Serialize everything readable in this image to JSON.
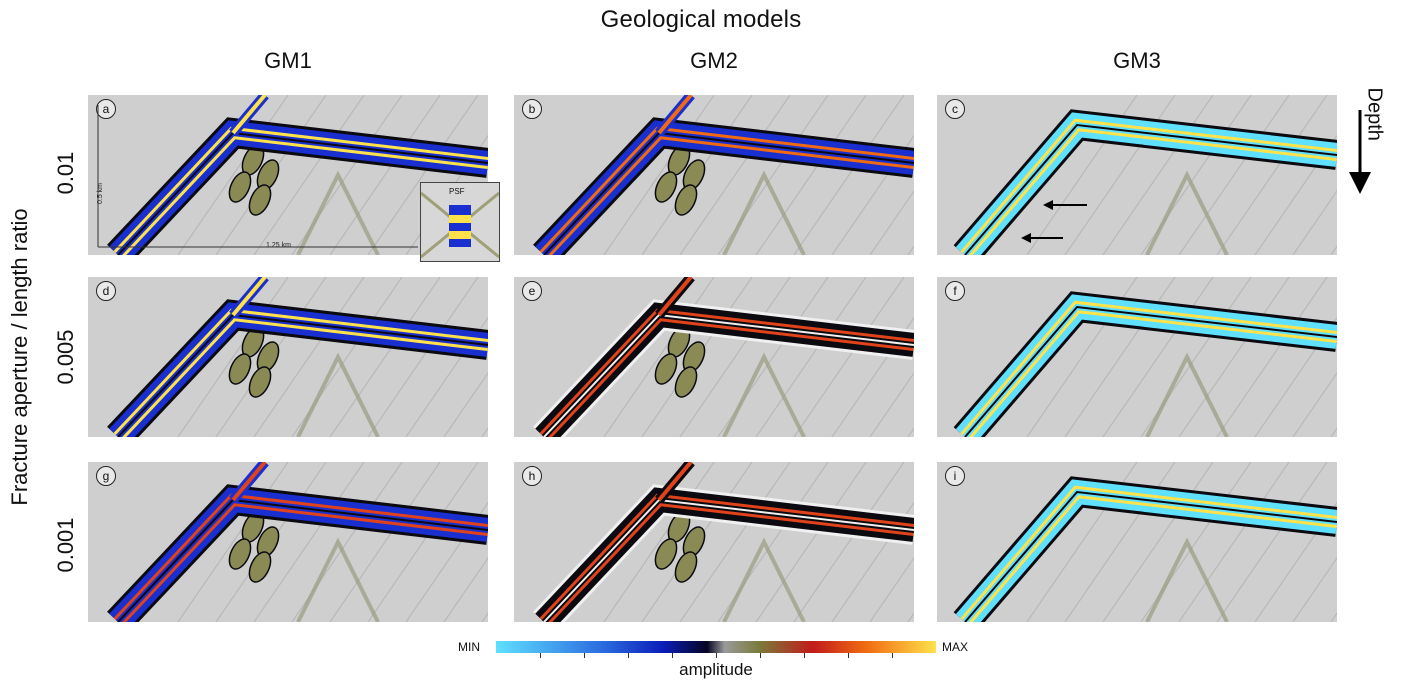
{
  "figure": {
    "title": "Geological models",
    "columns": [
      "GM1",
      "GM2",
      "GM3"
    ],
    "row_axis_label": "Fracture aperture / length ratio",
    "rows": [
      "0.01",
      "0.005",
      "0.001"
    ],
    "depth_label": "Depth"
  },
  "panels": [
    {
      "label": "a",
      "model": "GM1",
      "ratio": "0.01",
      "palette": "blueyellow"
    },
    {
      "label": "b",
      "model": "GM2",
      "ratio": "0.01",
      "palette": "bluered"
    },
    {
      "label": "c",
      "model": "GM3",
      "ratio": "0.01",
      "palette": "cyanyellow"
    },
    {
      "label": "d",
      "model": "GM1",
      "ratio": "0.005",
      "palette": "blueyellow"
    },
    {
      "label": "e",
      "model": "GM2",
      "ratio": "0.005",
      "palette": "redblack"
    },
    {
      "label": "f",
      "model": "GM3",
      "ratio": "0.005",
      "palette": "cyanyellow"
    },
    {
      "label": "g",
      "model": "GM1",
      "ratio": "0.001",
      "palette": "redblue"
    },
    {
      "label": "h",
      "model": "GM2",
      "ratio": "0.001",
      "palette": "redblack"
    },
    {
      "label": "i",
      "model": "GM3",
      "ratio": "0.001",
      "palette": "cyanyellow"
    }
  ],
  "scale_bars": {
    "vertical": "0.5 km",
    "horizontal": "1.25 km"
  },
  "inset": {
    "label": "PSF"
  },
  "colorbar": {
    "min_label": "MIN",
    "max_label": "MAX",
    "label": "amplitude",
    "colors": [
      "#5fe0ff",
      "#2b6de0",
      "#0b1db8",
      "#050523",
      "#9a9a9a",
      "#7a7a3a",
      "#c21b1b",
      "#f06a12",
      "#ffe24a"
    ]
  },
  "colors": {
    "panel_bg": "#cfcfcf",
    "yellow": "#ffe24a",
    "blue": "#1a2fd0",
    "cyan": "#5fe0ff",
    "red": "#e0431b",
    "black": "#0a0a10"
  }
}
